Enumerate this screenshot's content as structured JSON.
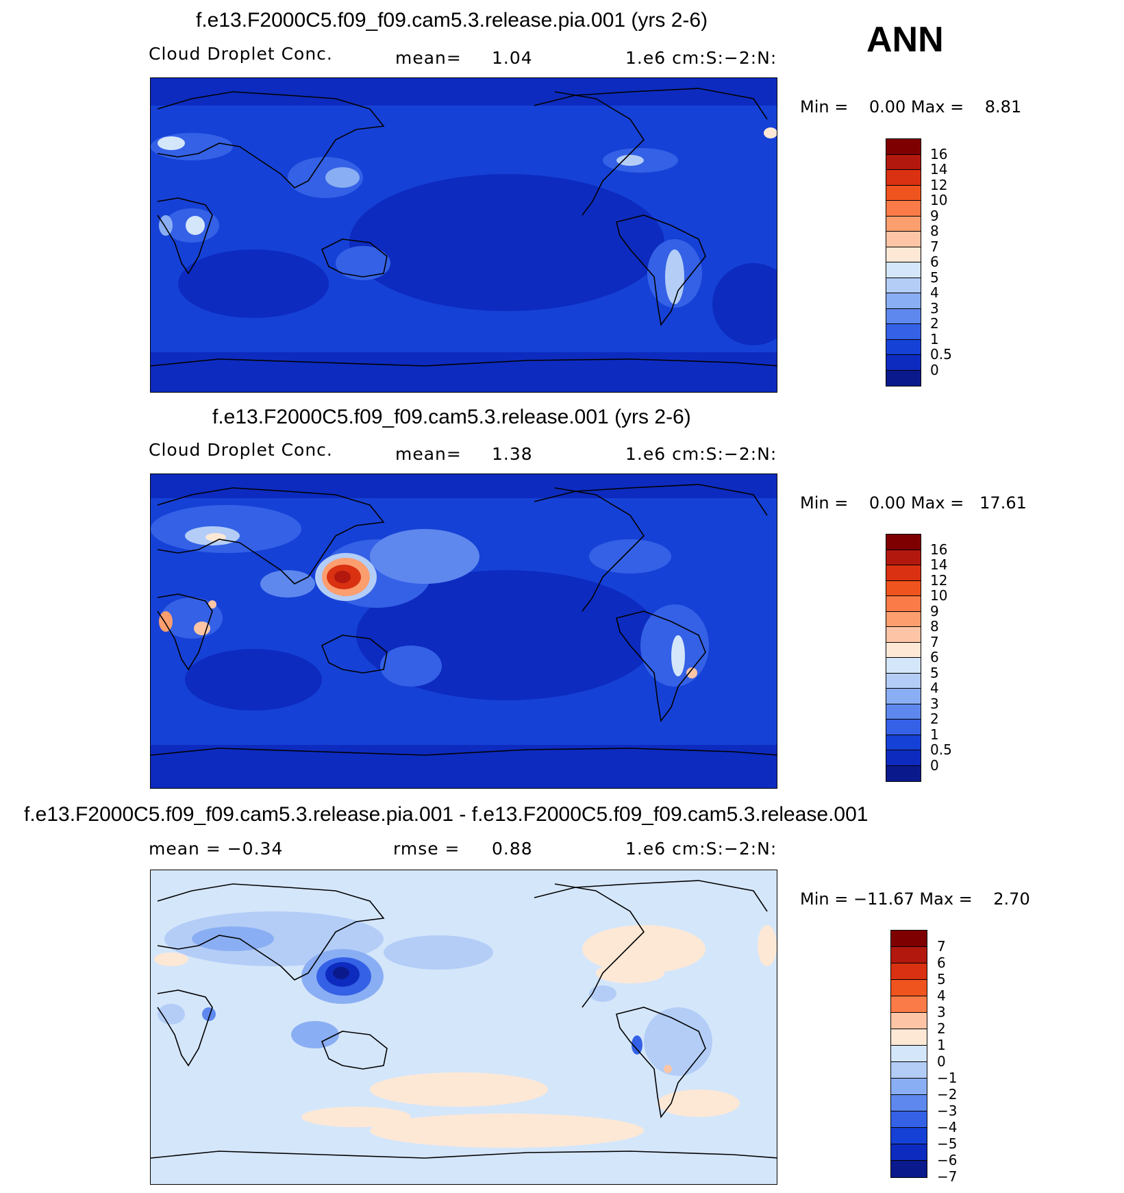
{
  "season": "ANN",
  "panels": [
    {
      "title": "f.e13.F2000C5.f09_f09.cam5.3.release.pia.001 (yrs 2-6)",
      "subtitle_left": "Cloud Droplet Conc.",
      "subtitle_mid_label": "mean=",
      "subtitle_mid_value": "1.04",
      "units": "1.e6 cm:S:−2:N:",
      "minmax": "Min =    0.00 Max =    8.81",
      "colorbar_labels": [
        "16",
        "14",
        "12",
        "10",
        "9",
        "8",
        "7",
        "6",
        "5",
        "4",
        "3",
        "2",
        "1",
        "0.5",
        "0"
      ]
    },
    {
      "title": "f.e13.F2000C5.f09_f09.cam5.3.release.001 (yrs 2-6)",
      "subtitle_left": "Cloud Droplet Conc.",
      "subtitle_mid_label": "mean=",
      "subtitle_mid_value": "1.38",
      "units": "1.e6 cm:S:−2:N:",
      "minmax": "Min =    0.00 Max =   17.61",
      "colorbar_labels": [
        "16",
        "14",
        "12",
        "10",
        "9",
        "8",
        "7",
        "6",
        "5",
        "4",
        "3",
        "2",
        "1",
        "0.5",
        "0"
      ]
    },
    {
      "title": "f.e13.F2000C5.f09_f09.cam5.3.release.pia.001 - f.e13.F2000C5.f09_f09.cam5.3.release.001",
      "subtitle_left": "mean =   −0.34",
      "subtitle_mid_label": "rmse =",
      "subtitle_mid_value": "0.88",
      "units": "1.e6 cm:S:−2:N:",
      "minmax": "Min = −11.67 Max =    2.70",
      "colorbar_labels": [
        "7",
        "6",
        "5",
        "4",
        "3",
        "2",
        "1",
        "0",
        "−1",
        "−2",
        "−3",
        "−4",
        "−5",
        "−6",
        "−7"
      ]
    }
  ],
  "colors": {
    "field_seq": [
      "#7f0000",
      "#b2180e",
      "#d93111",
      "#f0541e",
      "#fa7b47",
      "#fd9e6f",
      "#fdc5a6",
      "#fde8d6",
      "#d4e6fa",
      "#b3cdf7",
      "#8aaef3",
      "#5e88ee",
      "#3461e6",
      "#1641d6",
      "#0d2bbf",
      "#0a1a8c"
    ],
    "diff_seq": [
      "#7f0000",
      "#b2180e",
      "#d93111",
      "#f0541e",
      "#fa7b47",
      "#fdc5a6",
      "#fde8d6",
      "#d4e6fa",
      "#b3cdf7",
      "#8aaef3",
      "#5e88ee",
      "#3461e6",
      "#1641d6",
      "#0d2bbf",
      "#0a1a8c"
    ]
  }
}
